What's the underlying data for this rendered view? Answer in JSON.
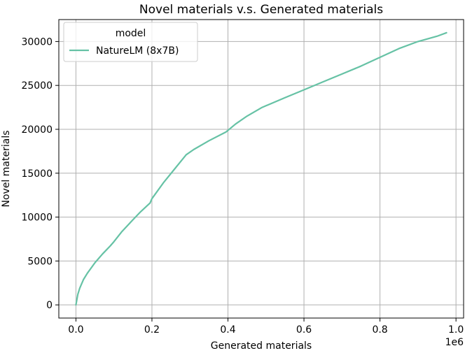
{
  "chart_data": {
    "type": "line",
    "title": "Novel materials v.s. Generated materials",
    "xlabel": "Generated materials",
    "ylabel": "Novel materials",
    "x_offset_label": "1e6",
    "xlim": [
      -0.045,
      1.02
    ],
    "ylim": [
      -1500,
      32500
    ],
    "xticks": [
      0.0,
      0.2,
      0.4,
      0.6,
      0.8,
      1.0
    ],
    "xtick_labels": [
      "0.0",
      "0.2",
      "0.4",
      "0.6",
      "0.8",
      "1.0"
    ],
    "yticks": [
      0,
      5000,
      10000,
      15000,
      20000,
      25000,
      30000
    ],
    "ytick_labels": [
      "0",
      "5000",
      "10000",
      "15000",
      "20000",
      "25000",
      "30000"
    ],
    "grid": true,
    "legend": {
      "title": "model",
      "placement": "top-left"
    },
    "series": [
      {
        "name": "NatureLM (8x7B)",
        "color": "#66c2a5",
        "x": [
          0.0,
          0.005,
          0.01,
          0.02,
          0.03,
          0.05,
          0.07,
          0.09,
          0.1,
          0.12,
          0.15,
          0.17,
          0.19,
          0.195,
          0.2,
          0.23,
          0.26,
          0.29,
          0.31,
          0.35,
          0.395,
          0.42,
          0.45,
          0.49,
          0.55,
          0.6,
          0.65,
          0.7,
          0.75,
          0.8,
          0.85,
          0.9,
          0.95,
          0.975
        ],
        "y": [
          0,
          1200,
          1900,
          2900,
          3600,
          4800,
          5800,
          6700,
          7200,
          8300,
          9700,
          10600,
          11400,
          11600,
          12100,
          13900,
          15500,
          17100,
          17700,
          18700,
          19700,
          20600,
          21500,
          22500,
          23600,
          24500,
          25400,
          26300,
          27200,
          28200,
          29200,
          30000,
          30600,
          31000
        ]
      }
    ]
  }
}
